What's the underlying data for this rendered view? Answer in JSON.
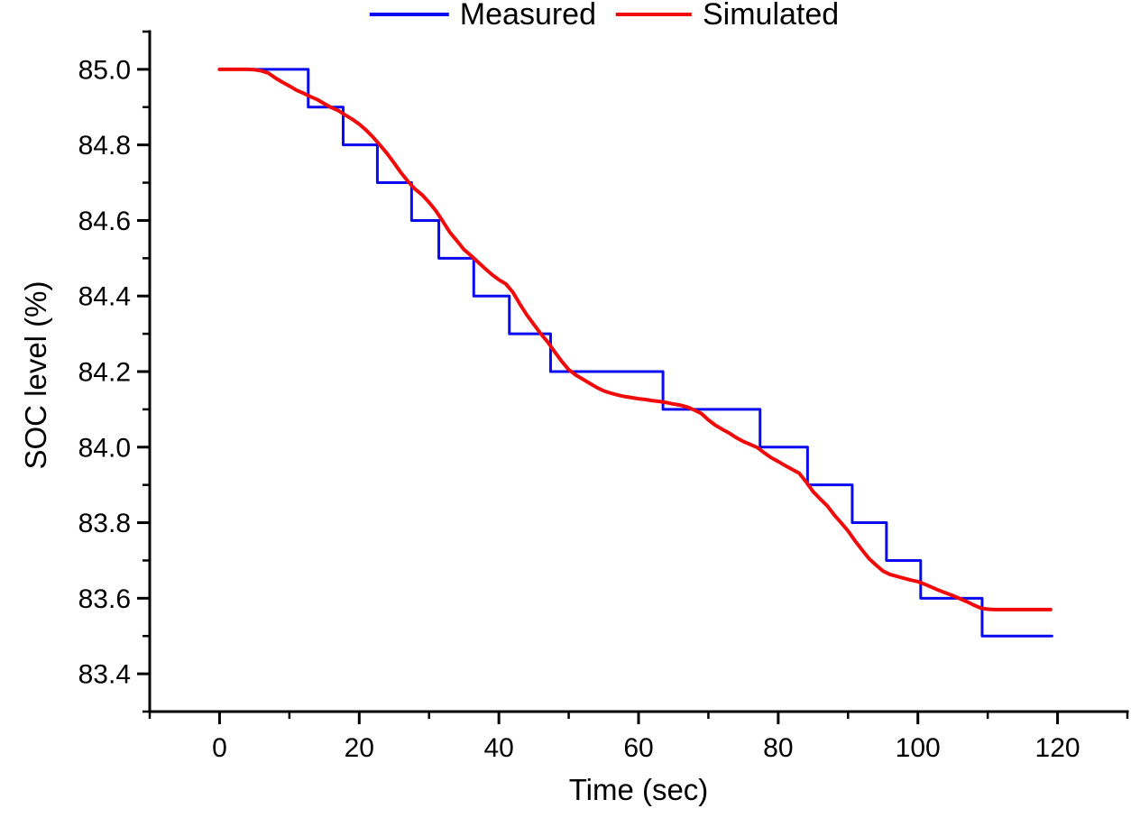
{
  "page": {
    "background": "#ffffff",
    "text_color": "#000000"
  },
  "chart_data": {
    "type": "line",
    "title": "",
    "xlabel": "Time (sec)",
    "ylabel": "SOC level (%)",
    "xlim": [
      -10,
      130
    ],
    "ylim": [
      83.3,
      85.1
    ],
    "grid": false,
    "legend_position": "top-center",
    "axis_color": "#000000",
    "x_major_ticks": [
      {
        "v": 0,
        "label": "0"
      },
      {
        "v": 20,
        "label": "20"
      },
      {
        "v": 40,
        "label": "40"
      },
      {
        "v": 60,
        "label": "60"
      },
      {
        "v": 80,
        "label": "80"
      },
      {
        "v": 100,
        "label": "100"
      },
      {
        "v": 120,
        "label": "120"
      }
    ],
    "x_minor_ticks": [
      -10,
      10,
      30,
      50,
      70,
      90,
      110,
      130
    ],
    "y_major_ticks": [
      {
        "v": 85.0,
        "label": "85.0"
      },
      {
        "v": 84.8,
        "label": "84.8"
      },
      {
        "v": 84.6,
        "label": "84.6"
      },
      {
        "v": 84.4,
        "label": "84.4"
      },
      {
        "v": 84.2,
        "label": "84.2"
      },
      {
        "v": 84.0,
        "label": "84.0"
      },
      {
        "v": 83.8,
        "label": "83.8"
      },
      {
        "v": 83.6,
        "label": "83.6"
      },
      {
        "v": 83.4,
        "label": "83.4"
      }
    ],
    "y_minor_ticks": [
      85.1,
      84.9,
      84.7,
      84.5,
      84.3,
      84.1,
      83.9,
      83.7,
      83.5,
      83.3
    ],
    "series": [
      {
        "name": "Measured",
        "color": "#0a0af0",
        "draw": "step",
        "line_width": 3,
        "breakpoints": [
          [
            0,
            85.0
          ],
          [
            12.7,
            84.9
          ],
          [
            17.7,
            84.8
          ],
          [
            22.6,
            84.7
          ],
          [
            27.5,
            84.6
          ],
          [
            31.4,
            84.5
          ],
          [
            36.4,
            84.4
          ],
          [
            41.5,
            84.3
          ],
          [
            47.4,
            84.2
          ],
          [
            63.5,
            84.1
          ],
          [
            77.4,
            84.0
          ],
          [
            84.2,
            83.9
          ],
          [
            90.6,
            83.8
          ],
          [
            95.5,
            83.7
          ],
          [
            100.4,
            83.6
          ],
          [
            109.2,
            83.5
          ]
        ],
        "end_t": 119.2
      },
      {
        "name": "Simulated",
        "color": "#f00a0a",
        "draw": "line",
        "line_width": 4,
        "points": [
          [
            0,
            85.0
          ],
          [
            1,
            85.0
          ],
          [
            2,
            85.0
          ],
          [
            3,
            85.0
          ],
          [
            4,
            85.0
          ],
          [
            5,
            84.999
          ],
          [
            6,
            84.996
          ],
          [
            7,
            84.99
          ],
          [
            8,
            84.977
          ],
          [
            9,
            84.966
          ],
          [
            10,
            84.956
          ],
          [
            11,
            84.945
          ],
          [
            12,
            84.937
          ],
          [
            13,
            84.928
          ],
          [
            14,
            84.92
          ],
          [
            15,
            84.909
          ],
          [
            16,
            84.899
          ],
          [
            17,
            84.891
          ],
          [
            18,
            84.879
          ],
          [
            19,
            84.868
          ],
          [
            20,
            84.855
          ],
          [
            21,
            84.839
          ],
          [
            22,
            84.82
          ],
          [
            23,
            84.799
          ],
          [
            24,
            84.777
          ],
          [
            25,
            84.752
          ],
          [
            26,
            84.726
          ],
          [
            27,
            84.703
          ],
          [
            28,
            84.683
          ],
          [
            29,
            84.668
          ],
          [
            30,
            84.648
          ],
          [
            31,
            84.625
          ],
          [
            32,
            84.597
          ],
          [
            33,
            84.568
          ],
          [
            34,
            84.546
          ],
          [
            35,
            84.523
          ],
          [
            36,
            84.507
          ],
          [
            37,
            84.49
          ],
          [
            38,
            84.473
          ],
          [
            39,
            84.457
          ],
          [
            40,
            84.443
          ],
          [
            41,
            84.432
          ],
          [
            42,
            84.41
          ],
          [
            43,
            84.379
          ],
          [
            44,
            84.35
          ],
          [
            45,
            84.325
          ],
          [
            46,
            84.3
          ],
          [
            47,
            84.278
          ],
          [
            48,
            84.252
          ],
          [
            49,
            84.227
          ],
          [
            50,
            84.205
          ],
          [
            51,
            84.191
          ],
          [
            52,
            84.18
          ],
          [
            53,
            84.169
          ],
          [
            54,
            84.158
          ],
          [
            55,
            84.149
          ],
          [
            56,
            84.143
          ],
          [
            57,
            84.138
          ],
          [
            58,
            84.134
          ],
          [
            59,
            84.131
          ],
          [
            60,
            84.128
          ],
          [
            61,
            84.126
          ],
          [
            62,
            84.123
          ],
          [
            63,
            84.121
          ],
          [
            64,
            84.118
          ],
          [
            65,
            84.114
          ],
          [
            66,
            84.111
          ],
          [
            67,
            84.106
          ],
          [
            68,
            84.098
          ],
          [
            69,
            84.089
          ],
          [
            70,
            84.072
          ],
          [
            71,
            84.058
          ],
          [
            72,
            84.047
          ],
          [
            73,
            84.037
          ],
          [
            74,
            84.025
          ],
          [
            75,
            84.015
          ],
          [
            76,
            84.007
          ],
          [
            77,
            83.999
          ],
          [
            78,
            83.985
          ],
          [
            79,
            83.972
          ],
          [
            80,
            83.962
          ],
          [
            81,
            83.951
          ],
          [
            82,
            83.941
          ],
          [
            83,
            83.931
          ],
          [
            84,
            83.908
          ],
          [
            85,
            83.882
          ],
          [
            86,
            83.863
          ],
          [
            87,
            83.845
          ],
          [
            88,
            83.821
          ],
          [
            89,
            83.8
          ],
          [
            90,
            83.778
          ],
          [
            91,
            83.752
          ],
          [
            92,
            83.728
          ],
          [
            93,
            83.705
          ],
          [
            94,
            83.688
          ],
          [
            95,
            83.672
          ],
          [
            96,
            83.663
          ],
          [
            97,
            83.658
          ],
          [
            98,
            83.653
          ],
          [
            99,
            83.648
          ],
          [
            100,
            83.644
          ],
          [
            101,
            83.637
          ],
          [
            102,
            83.629
          ],
          [
            103,
            83.621
          ],
          [
            104,
            83.614
          ],
          [
            105,
            83.607
          ],
          [
            106,
            83.599
          ],
          [
            107,
            83.591
          ],
          [
            108,
            83.582
          ],
          [
            109,
            83.574
          ],
          [
            110,
            83.571
          ],
          [
            111,
            83.57
          ],
          [
            112,
            83.57
          ],
          [
            113,
            83.57
          ],
          [
            114,
            83.57
          ],
          [
            115,
            83.57
          ],
          [
            116,
            83.57
          ],
          [
            117,
            83.57
          ],
          [
            118,
            83.57
          ],
          [
            119,
            83.57
          ]
        ]
      }
    ]
  }
}
